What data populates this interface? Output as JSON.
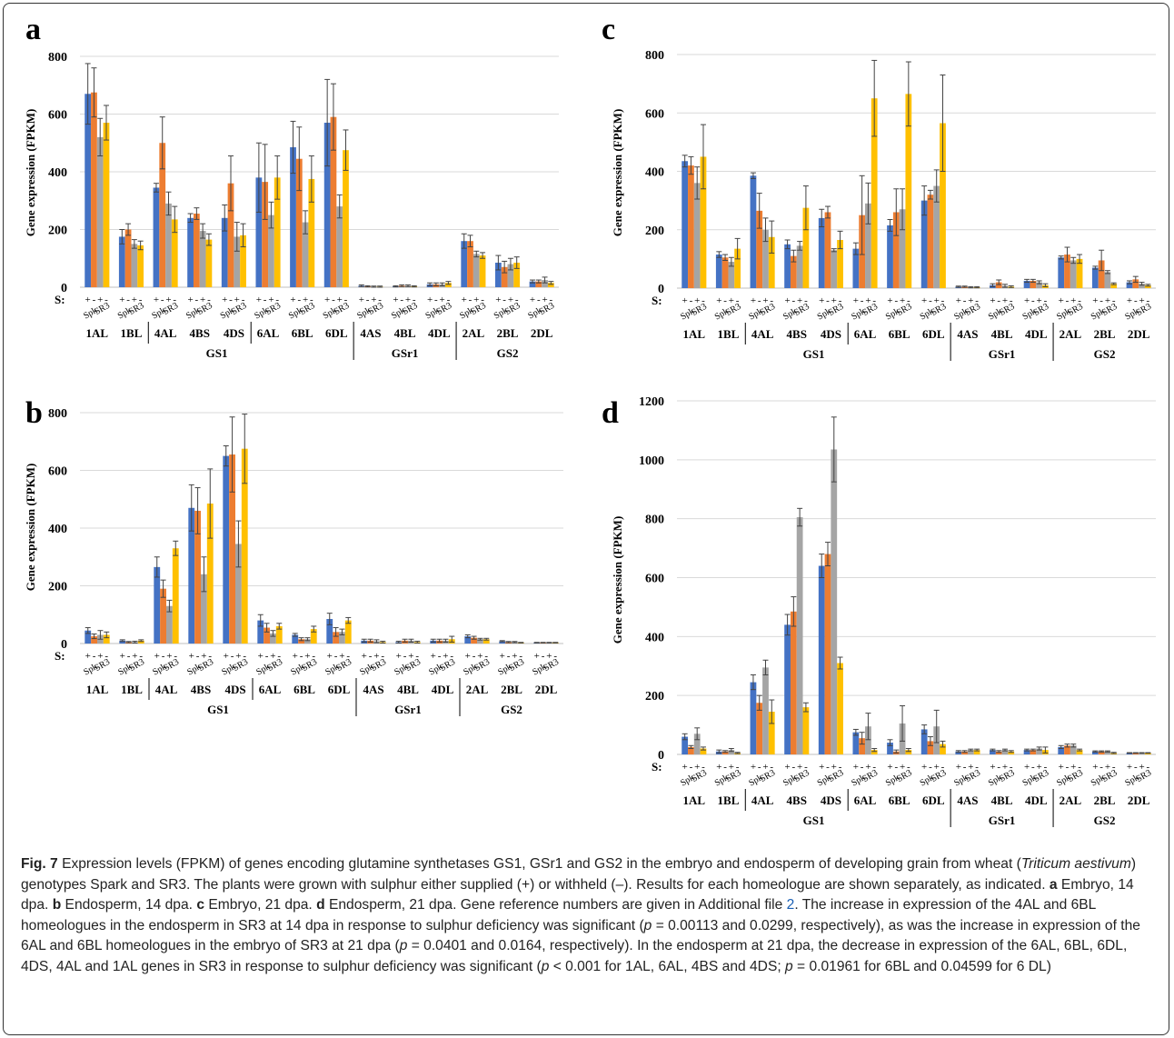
{
  "legend_sulphur": "S:",
  "genotype_labels": [
    "Spk",
    "SR3"
  ],
  "sulphur_signs": [
    "+",
    "-",
    "+",
    "-"
  ],
  "series_colors": [
    "#4472C4",
    "#ED7D31",
    "#A5A5A5",
    "#FFC000"
  ],
  "chart_data": [
    {
      "type": "bar",
      "panel": "a",
      "ylabel": "Gene expression (FPKM)",
      "ylim": [
        0,
        800
      ],
      "yticks": [
        0,
        200,
        400,
        600,
        800
      ],
      "categories": [
        "1AL",
        "1BL",
        "4AL",
        "4BS",
        "4DS",
        "6AL",
        "6BL",
        "6DL",
        "4AS",
        "4BL",
        "4DL",
        "2AL",
        "2BL",
        "2DL"
      ],
      "groups": [
        {
          "name": "GS1",
          "categories": [
            "1AL",
            "1BL",
            "4AL",
            "4BS",
            "4DS",
            "6AL",
            "6BL",
            "6DL"
          ]
        },
        {
          "name": "GSr1",
          "categories": [
            "4AS",
            "4BL",
            "4DL"
          ]
        },
        {
          "name": "GS2",
          "categories": [
            "2AL",
            "2BL",
            "2DL"
          ]
        }
      ],
      "series": [
        {
          "name": "Spark +S",
          "values": [
            670,
            175,
            345,
            240,
            240,
            380,
            485,
            570,
            5,
            3,
            10,
            160,
            85,
            20
          ],
          "errors": [
            105,
            25,
            15,
            15,
            45,
            120,
            90,
            150,
            3,
            2,
            5,
            25,
            25,
            5
          ]
        },
        {
          "name": "Spark -S",
          "values": [
            675,
            200,
            500,
            255,
            360,
            365,
            445,
            590,
            3,
            5,
            10,
            160,
            70,
            20
          ],
          "errors": [
            85,
            20,
            90,
            20,
            95,
            130,
            110,
            115,
            2,
            3,
            5,
            20,
            20,
            5
          ]
        },
        {
          "name": "SR3 +S",
          "values": [
            520,
            150,
            290,
            195,
            175,
            250,
            225,
            280,
            2,
            5,
            10,
            115,
            80,
            25
          ],
          "errors": [
            65,
            15,
            40,
            25,
            50,
            45,
            40,
            40,
            2,
            3,
            5,
            10,
            20,
            10
          ]
        },
        {
          "name": "SR3 -S",
          "values": [
            570,
            145,
            235,
            165,
            180,
            380,
            375,
            475,
            2,
            3,
            15,
            110,
            85,
            15
          ],
          "errors": [
            60,
            15,
            45,
            20,
            40,
            75,
            80,
            70,
            2,
            2,
            5,
            10,
            20,
            5
          ]
        }
      ]
    },
    {
      "type": "bar",
      "panel": "b",
      "ylabel": "Gene expression (FPKM)",
      "ylim": [
        0,
        800
      ],
      "yticks": [
        0,
        200,
        400,
        600,
        800
      ],
      "categories": [
        "1AL",
        "1BL",
        "4AL",
        "4BS",
        "4DS",
        "6AL",
        "6BL",
        "6DL",
        "4AS",
        "4BL",
        "4DL",
        "2AL",
        "2BL",
        "2DL"
      ],
      "groups": [
        {
          "name": "GS1",
          "categories": [
            "1AL",
            "1BL",
            "4AL",
            "4BS",
            "4DS",
            "6AL",
            "6BL",
            "6DL"
          ]
        },
        {
          "name": "GSr1",
          "categories": [
            "4AS",
            "4BL",
            "4DL"
          ]
        },
        {
          "name": "GS2",
          "categories": [
            "2AL",
            "2BL",
            "2DL"
          ]
        }
      ],
      "series": [
        {
          "name": "Spark +S",
          "values": [
            45,
            10,
            265,
            470,
            650,
            80,
            30,
            85,
            10,
            5,
            10,
            25,
            8,
            3
          ],
          "errors": [
            10,
            3,
            35,
            80,
            35,
            20,
            5,
            20,
            5,
            3,
            5,
            5,
            2,
            1
          ]
        },
        {
          "name": "Spark -S",
          "values": [
            25,
            5,
            190,
            460,
            655,
            55,
            15,
            40,
            10,
            10,
            10,
            20,
            5,
            3
          ],
          "errors": [
            8,
            2,
            30,
            80,
            130,
            15,
            5,
            15,
            5,
            5,
            5,
            5,
            2,
            1
          ]
        },
        {
          "name": "SR3 +S",
          "values": [
            30,
            5,
            130,
            240,
            345,
            35,
            15,
            40,
            8,
            10,
            10,
            15,
            5,
            3
          ],
          "errors": [
            15,
            3,
            20,
            60,
            80,
            10,
            5,
            10,
            5,
            5,
            5,
            3,
            2,
            1
          ]
        },
        {
          "name": "SR3 -S",
          "values": [
            30,
            10,
            330,
            485,
            675,
            60,
            50,
            80,
            5,
            5,
            15,
            15,
            3,
            3
          ],
          "errors": [
            10,
            3,
            25,
            120,
            120,
            10,
            10,
            10,
            3,
            3,
            10,
            3,
            1,
            1
          ]
        }
      ]
    },
    {
      "type": "bar",
      "panel": "c",
      "ylabel": "Gene expression (FPKM)",
      "ylim": [
        0,
        800
      ],
      "yticks": [
        0,
        200,
        400,
        600,
        800
      ],
      "categories": [
        "1AL",
        "1BL",
        "4AL",
        "4BS",
        "4DS",
        "6AL",
        "6BL",
        "6DL",
        "4AS",
        "4BL",
        "4DL",
        "2AL",
        "2BL",
        "2DL"
      ],
      "groups": [
        {
          "name": "GS1",
          "categories": [
            "1AL",
            "1BL",
            "4AL",
            "4BS",
            "4DS",
            "6AL",
            "6BL",
            "6DL"
          ]
        },
        {
          "name": "GSr1",
          "categories": [
            "4AS",
            "4BL",
            "4DL"
          ]
        },
        {
          "name": "GS2",
          "categories": [
            "2AL",
            "2BL",
            "2DL"
          ]
        }
      ],
      "series": [
        {
          "name": "Spark +S",
          "values": [
            435,
            115,
            385,
            150,
            240,
            135,
            215,
            300,
            5,
            10,
            25,
            105,
            70,
            20
          ],
          "errors": [
            20,
            10,
            10,
            15,
            30,
            20,
            20,
            50,
            2,
            5,
            5,
            5,
            5,
            5
          ]
        },
        {
          "name": "Spark -S",
          "values": [
            420,
            105,
            265,
            110,
            260,
            250,
            260,
            320,
            5,
            20,
            25,
            115,
            95,
            30
          ],
          "errors": [
            30,
            10,
            60,
            20,
            20,
            135,
            80,
            15,
            2,
            8,
            5,
            25,
            35,
            10
          ]
        },
        {
          "name": "SR3 +S",
          "values": [
            360,
            90,
            200,
            145,
            130,
            290,
            270,
            350,
            3,
            8,
            20,
            95,
            55,
            15
          ],
          "errors": [
            55,
            15,
            40,
            15,
            5,
            70,
            70,
            55,
            2,
            5,
            5,
            10,
            5,
            5
          ]
        },
        {
          "name": "SR3 -S",
          "values": [
            450,
            135,
            175,
            275,
            165,
            650,
            665,
            565,
            3,
            5,
            10,
            100,
            15,
            10
          ],
          "errors": [
            110,
            35,
            55,
            75,
            30,
            130,
            110,
            165,
            2,
            3,
            5,
            15,
            3,
            3
          ]
        }
      ]
    },
    {
      "type": "bar",
      "panel": "d",
      "ylabel": "Gene expression (FPKM)",
      "ylim": [
        0,
        1200
      ],
      "yticks": [
        0,
        200,
        400,
        600,
        800,
        1000,
        1200
      ],
      "categories": [
        "1AL",
        "1BL",
        "4AL",
        "4BS",
        "4DS",
        "6AL",
        "6BL",
        "6DL",
        "4AS",
        "4BL",
        "4DL",
        "2AL",
        "2BL",
        "2DL"
      ],
      "groups": [
        {
          "name": "GS1",
          "categories": [
            "1AL",
            "1BL",
            "4AL",
            "4BS",
            "4DS",
            "6AL",
            "6BL",
            "6DL"
          ]
        },
        {
          "name": "GSr1",
          "categories": [
            "4AS",
            "4BL",
            "4DL"
          ]
        },
        {
          "name": "GS2",
          "categories": [
            "2AL",
            "2BL",
            "2DL"
          ]
        }
      ],
      "series": [
        {
          "name": "Spark +S",
          "values": [
            60,
            10,
            245,
            440,
            640,
            75,
            40,
            85,
            10,
            15,
            15,
            25,
            10,
            5
          ],
          "errors": [
            10,
            5,
            25,
            35,
            40,
            10,
            10,
            15,
            3,
            3,
            3,
            5,
            2,
            1
          ]
        },
        {
          "name": "Spark -S",
          "values": [
            25,
            10,
            175,
            485,
            680,
            55,
            10,
            45,
            10,
            10,
            15,
            30,
            10,
            5
          ],
          "errors": [
            5,
            3,
            25,
            50,
            40,
            20,
            5,
            15,
            3,
            3,
            3,
            5,
            2,
            1
          ]
        },
        {
          "name": "SR3 +S",
          "values": [
            70,
            15,
            295,
            805,
            1035,
            95,
            105,
            95,
            15,
            15,
            20,
            30,
            10,
            5
          ],
          "errors": [
            20,
            5,
            25,
            30,
            110,
            45,
            60,
            55,
            3,
            3,
            5,
            5,
            2,
            1
          ]
        },
        {
          "name": "SR3 -S",
          "values": [
            20,
            5,
            145,
            160,
            310,
            15,
            15,
            35,
            15,
            10,
            15,
            15,
            5,
            5
          ],
          "errors": [
            5,
            2,
            40,
            15,
            20,
            5,
            5,
            10,
            3,
            3,
            10,
            3,
            2,
            1
          ]
        }
      ]
    }
  ],
  "caption": {
    "fig_label": "Fig. 7",
    "t1": " Expression levels (FPKM) of genes encoding glutamine synthetases GS1, GSr1 and GS2 in the embryo and endosperm of developing grain from wheat (",
    "species": "Triticum aestivum",
    "t2": ") genotypes Spark and SR3. The plants were grown with sulphur either supplied (+) or withheld (–). Results for each homeologue are shown separately, as indicated. ",
    "la": "a",
    "ta": " Embryo, 14 dpa. ",
    "lb": "b",
    "tb": " Endosperm, 14 dpa. ",
    "lc": "c",
    "tc": " Embryo, 21 dpa. ",
    "ld": "d",
    "td": " Endosperm, 21 dpa. Gene reference numbers are given in Additional file ",
    "link": "2",
    "t3": ". The increase in expression of the 4AL and 6BL homeologues in the endosperm in SR3 at 14 dpa in response to sulphur deficiency was significant (",
    "p1": "p",
    "t4": " = 0.00113 and 0.0299, respectively), as was the increase in expression of the 6AL and 6BL homeologues in the embryo of SR3 at 21 dpa (",
    "p2": "p",
    "t5": " = 0.0401 and 0.0164, respectively). In the endosperm at 21 dpa, the decrease in expression of the 6AL, 6BL, 6DL, 4DS, 4AL and 1AL genes in SR3 in response to sulphur deficiency was significant (",
    "p3": "p",
    "t6": " < 0.001 for 1AL, 6AL, 4BS and 4DS; ",
    "p4": "p",
    "t7": " = 0.01961 for 6BL and 0.04599 for 6 DL)"
  }
}
